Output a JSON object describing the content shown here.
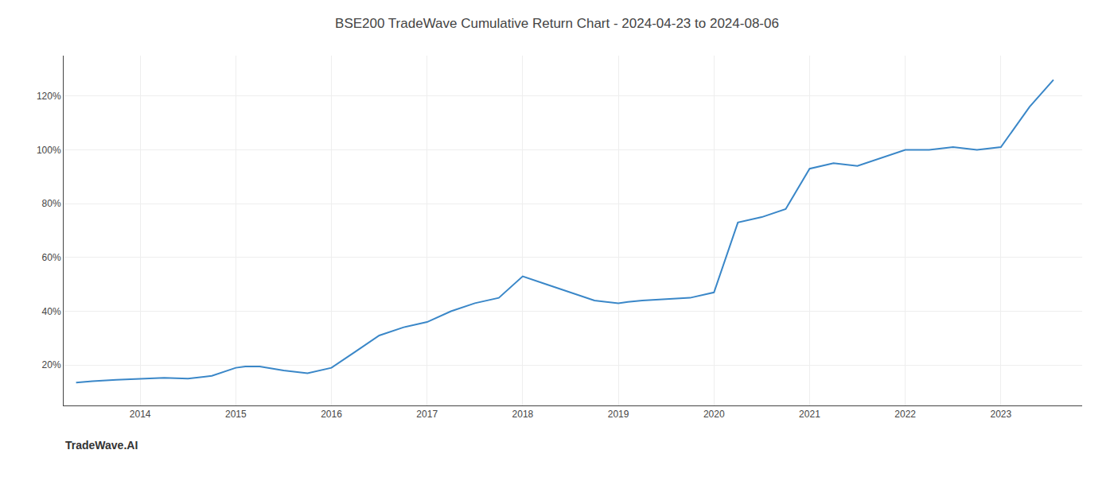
{
  "chart_data": {
    "type": "line",
    "title": "BSE200 TradeWave Cumulative Return Chart - 2024-04-23 to 2024-08-06",
    "annotations": [
      "TradeWave.AI"
    ],
    "x": [
      2013.33,
      2013.5,
      2013.75,
      2014.0,
      2014.25,
      2014.5,
      2014.75,
      2015.0,
      2015.1,
      2015.25,
      2015.5,
      2015.75,
      2016.0,
      2016.25,
      2016.5,
      2016.75,
      2017.0,
      2017.25,
      2017.5,
      2017.75,
      2018.0,
      2018.25,
      2018.5,
      2018.75,
      2019.0,
      2019.1,
      2019.25,
      2019.5,
      2019.75,
      2020.0,
      2020.25,
      2020.5,
      2020.75,
      2021.0,
      2021.25,
      2021.5,
      2021.75,
      2022.0,
      2022.25,
      2022.5,
      2022.75,
      2023.0,
      2023.3,
      2023.55
    ],
    "values": [
      13.5,
      14,
      14.5,
      15,
      15.3,
      15,
      16,
      19,
      19.5,
      19.5,
      18,
      17,
      19,
      25,
      31,
      34,
      36,
      40,
      43,
      45,
      53,
      50,
      47,
      44,
      43,
      43.5,
      44,
      44.5,
      45,
      47,
      73,
      75,
      78,
      93,
      95,
      94,
      97,
      100,
      100,
      101,
      100,
      101,
      116,
      126
    ],
    "color": "#3a87c8",
    "xlim": [
      2013.2,
      2023.85
    ],
    "ylim": [
      5,
      135
    ],
    "xticks": [
      2014,
      2015,
      2016,
      2017,
      2018,
      2019,
      2020,
      2021,
      2022,
      2023
    ],
    "yticks": [
      {
        "value": 20,
        "label": "20%"
      },
      {
        "value": 40,
        "label": "40%"
      },
      {
        "value": 60,
        "label": "60%"
      },
      {
        "value": 80,
        "label": "80%"
      },
      {
        "value": 100,
        "label": "100%"
      },
      {
        "value": 120,
        "label": "120%"
      }
    ],
    "grid": true
  }
}
